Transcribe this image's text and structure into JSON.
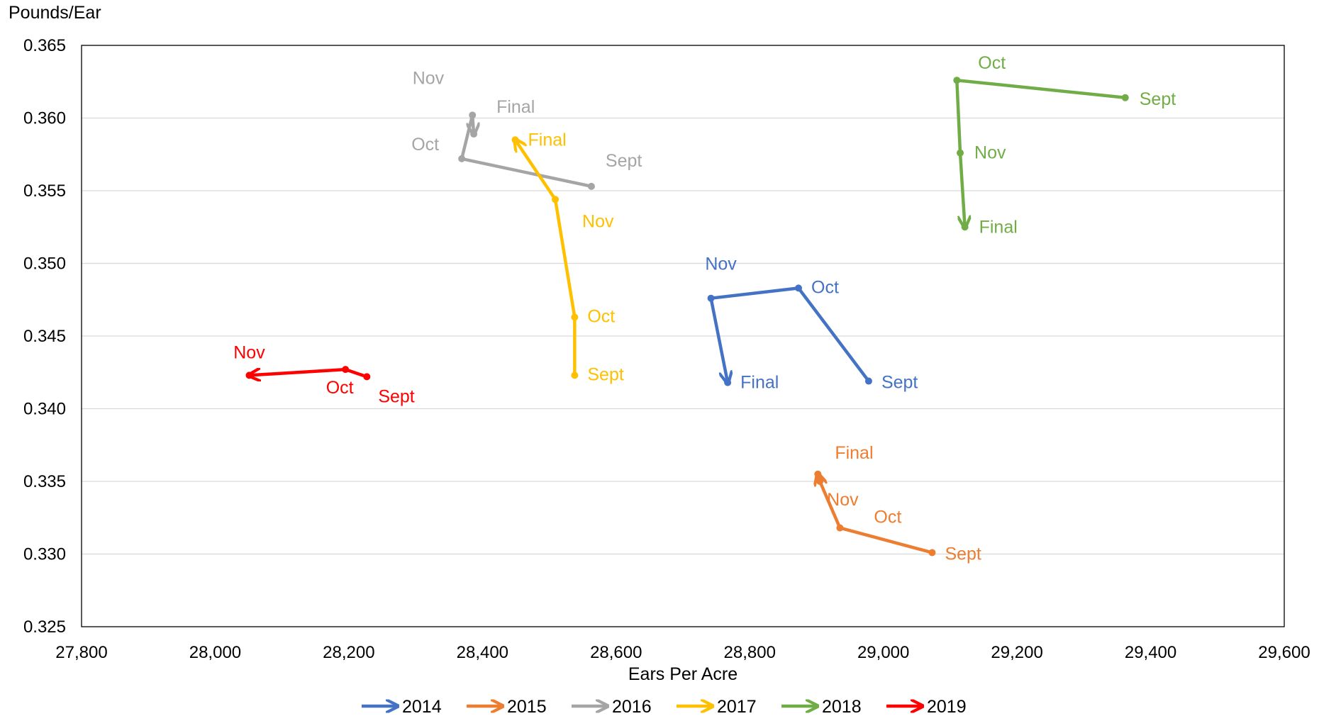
{
  "chart_data": {
    "type": "line",
    "ylabel": "Pounds/Ear",
    "xlabel": "Ears Per Acre",
    "xlim": [
      27800,
      29600
    ],
    "ylim": [
      0.325,
      0.365
    ],
    "xticks": [
      "27,800",
      "28,000",
      "28,200",
      "28,400",
      "28,600",
      "28,800",
      "29,000",
      "29,200",
      "29,400",
      "29,600"
    ],
    "yticks": [
      "0.325",
      "0.330",
      "0.335",
      "0.340",
      "0.345",
      "0.350",
      "0.355",
      "0.360",
      "0.365"
    ],
    "grid": "horizontal",
    "legend_position": "bottom",
    "series": [
      {
        "name": "2014",
        "color": "#4472C4",
        "points": [
          {
            "label": "Sept",
            "x": 28978,
            "y": 0.3419
          },
          {
            "label": "Oct",
            "x": 28873,
            "y": 0.3483
          },
          {
            "label": "Nov",
            "x": 28742,
            "y": 0.3476
          },
          {
            "label": "Final",
            "x": 28767,
            "y": 0.3418
          }
        ]
      },
      {
        "name": "2015",
        "color": "#ED7D31",
        "points": [
          {
            "label": "Sept",
            "x": 29073,
            "y": 0.3301
          },
          {
            "label": "Oct",
            "x": 28935,
            "y": 0.3318
          },
          {
            "label": "Nov",
            "x": 28905,
            "y": 0.335
          },
          {
            "label": "Final",
            "x": 28902,
            "y": 0.3355
          }
        ]
      },
      {
        "name": "2016",
        "color": "#A5A5A5",
        "points": [
          {
            "label": "Sept",
            "x": 28563,
            "y": 0.3553
          },
          {
            "label": "Oct",
            "x": 28369,
            "y": 0.3572
          },
          {
            "label": "Nov",
            "x": 28385,
            "y": 0.3602
          },
          {
            "label": "Final",
            "x": 28387,
            "y": 0.3589
          }
        ]
      },
      {
        "name": "2017",
        "color": "#FFC000",
        "points": [
          {
            "label": "Sept",
            "x": 28538,
            "y": 0.3423
          },
          {
            "label": "Oct",
            "x": 28538,
            "y": 0.3463
          },
          {
            "label": "Nov",
            "x": 28509,
            "y": 0.3544
          },
          {
            "label": "Final",
            "x": 28449,
            "y": 0.3585
          }
        ]
      },
      {
        "name": "2018",
        "color": "#70AD47",
        "points": [
          {
            "label": "Sept",
            "x": 29362,
            "y": 0.3614
          },
          {
            "label": "Oct",
            "x": 29110,
            "y": 0.3626
          },
          {
            "label": "Nov",
            "x": 29115,
            "y": 0.3576
          },
          {
            "label": "Final",
            "x": 29122,
            "y": 0.3525
          }
        ]
      },
      {
        "name": "2019",
        "color": "#FF0000",
        "points": [
          {
            "label": "Sept",
            "x": 28227,
            "y": 0.3422
          },
          {
            "label": "Oct",
            "x": 28195,
            "y": 0.3427
          },
          {
            "label": "Nov",
            "x": 28051,
            "y": 0.3423
          }
        ]
      }
    ]
  }
}
